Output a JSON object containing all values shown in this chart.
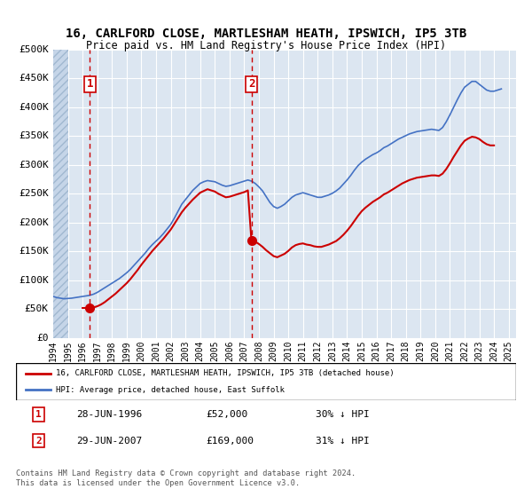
{
  "title": "16, CARLFORD CLOSE, MARTLESHAM HEATH, IPSWICH, IP5 3TB",
  "subtitle": "Price paid vs. HM Land Registry's House Price Index (HPI)",
  "xlabel": "",
  "ylabel": "",
  "ylim": [
    0,
    500000
  ],
  "yticks": [
    0,
    50000,
    100000,
    150000,
    200000,
    250000,
    300000,
    350000,
    400000,
    450000,
    500000
  ],
  "ytick_labels": [
    "£0",
    "£50K",
    "£100K",
    "£150K",
    "£200K",
    "£250K",
    "£300K",
    "£350K",
    "£400K",
    "£450K",
    "£500K"
  ],
  "xlim_start": 1994.0,
  "xlim_end": 2025.5,
  "hatch_end": 1995.0,
  "bg_color": "#dce6f1",
  "plot_bg": "#dce6f1",
  "hatch_color": "#b8cce4",
  "grid_color": "#ffffff",
  "purchase1_x": 1996.49,
  "purchase1_y": 52000,
  "purchase2_x": 2007.49,
  "purchase2_y": 169000,
  "legend_line1": "16, CARLFORD CLOSE, MARTLESHAM HEATH, IPSWICH, IP5 3TB (detached house)",
  "legend_line2": "HPI: Average price, detached house, East Suffolk",
  "table_row1": [
    "1",
    "28-JUN-1996",
    "£52,000",
    "30% ↓ HPI"
  ],
  "table_row2": [
    "2",
    "29-JUN-2007",
    "£169,000",
    "31% ↓ HPI"
  ],
  "footnote": "Contains HM Land Registry data © Crown copyright and database right 2024.\nThis data is licensed under the Open Government Licence v3.0.",
  "red_line_color": "#cc0000",
  "blue_line_color": "#4472c4",
  "marker_color": "#cc0000",
  "vline_color": "#cc0000",
  "hpi_data_x": [
    1994.0,
    1994.25,
    1994.5,
    1994.75,
    1995.0,
    1995.25,
    1995.5,
    1995.75,
    1996.0,
    1996.25,
    1996.5,
    1996.75,
    1997.0,
    1997.25,
    1997.5,
    1997.75,
    1998.0,
    1998.25,
    1998.5,
    1998.75,
    1999.0,
    1999.25,
    1999.5,
    1999.75,
    2000.0,
    2000.25,
    2000.5,
    2000.75,
    2001.0,
    2001.25,
    2001.5,
    2001.75,
    2002.0,
    2002.25,
    2002.5,
    2002.75,
    2003.0,
    2003.25,
    2003.5,
    2003.75,
    2004.0,
    2004.25,
    2004.5,
    2004.75,
    2005.0,
    2005.25,
    2005.5,
    2005.75,
    2006.0,
    2006.25,
    2006.5,
    2006.75,
    2007.0,
    2007.25,
    2007.5,
    2007.75,
    2008.0,
    2008.25,
    2008.5,
    2008.75,
    2009.0,
    2009.25,
    2009.5,
    2009.75,
    2010.0,
    2010.25,
    2010.5,
    2010.75,
    2011.0,
    2011.25,
    2011.5,
    2011.75,
    2012.0,
    2012.25,
    2012.5,
    2012.75,
    2013.0,
    2013.25,
    2013.5,
    2013.75,
    2014.0,
    2014.25,
    2014.5,
    2014.75,
    2015.0,
    2015.25,
    2015.5,
    2015.75,
    2016.0,
    2016.25,
    2016.5,
    2016.75,
    2017.0,
    2017.25,
    2017.5,
    2017.75,
    2018.0,
    2018.25,
    2018.5,
    2018.75,
    2019.0,
    2019.25,
    2019.5,
    2019.75,
    2020.0,
    2020.25,
    2020.5,
    2020.75,
    2021.0,
    2021.25,
    2021.5,
    2021.75,
    2022.0,
    2022.25,
    2022.5,
    2022.75,
    2023.0,
    2023.25,
    2023.5,
    2023.75,
    2024.0,
    2024.25,
    2024.5
  ],
  "hpi_data_y": [
    72000,
    70000,
    69000,
    68000,
    68500,
    69000,
    70000,
    71000,
    72000,
    73000,
    74000,
    76000,
    79000,
    83000,
    87000,
    91000,
    95000,
    99000,
    103000,
    108000,
    113000,
    119000,
    126000,
    133000,
    140000,
    147000,
    155000,
    162000,
    168000,
    174000,
    181000,
    189000,
    197000,
    208000,
    220000,
    232000,
    240000,
    248000,
    256000,
    262000,
    268000,
    271000,
    273000,
    272000,
    271000,
    268000,
    265000,
    263000,
    264000,
    266000,
    268000,
    270000,
    272000,
    274000,
    272000,
    268000,
    262000,
    255000,
    245000,
    235000,
    228000,
    225000,
    228000,
    232000,
    238000,
    244000,
    248000,
    250000,
    252000,
    250000,
    248000,
    246000,
    244000,
    244000,
    246000,
    248000,
    251000,
    255000,
    260000,
    267000,
    274000,
    282000,
    291000,
    299000,
    305000,
    310000,
    314000,
    318000,
    321000,
    325000,
    330000,
    333000,
    337000,
    341000,
    345000,
    348000,
    351000,
    354000,
    356000,
    358000,
    359000,
    360000,
    361000,
    362000,
    361000,
    360000,
    365000,
    375000,
    387000,
    400000,
    413000,
    425000,
    435000,
    440000,
    445000,
    445000,
    440000,
    435000,
    430000,
    428000,
    428000,
    430000,
    432000
  ],
  "red_data_x": [
    1996.0,
    1996.25,
    1996.49,
    1996.75,
    1997.0,
    1997.25,
    1997.5,
    1997.75,
    1998.0,
    1998.25,
    1998.5,
    1998.75,
    1999.0,
    1999.25,
    1999.5,
    1999.75,
    2000.0,
    2000.25,
    2000.5,
    2000.75,
    2001.0,
    2001.25,
    2001.5,
    2001.75,
    2002.0,
    2002.25,
    2002.5,
    2002.75,
    2003.0,
    2003.25,
    2003.5,
    2003.75,
    2004.0,
    2004.25,
    2004.5,
    2004.75,
    2005.0,
    2005.25,
    2005.5,
    2005.75,
    2006.0,
    2006.25,
    2006.5,
    2006.75,
    2007.0,
    2007.25,
    2007.49,
    2007.75,
    2008.0,
    2008.25,
    2008.5,
    2008.75,
    2009.0,
    2009.25,
    2009.5,
    2009.75,
    2010.0,
    2010.25,
    2010.5,
    2010.75,
    2011.0,
    2011.25,
    2011.5,
    2011.75,
    2012.0,
    2012.25,
    2012.5,
    2012.75,
    2013.0,
    2013.25,
    2013.5,
    2013.75,
    2014.0,
    2014.25,
    2014.5,
    2014.75,
    2015.0,
    2015.25,
    2015.5,
    2015.75,
    2016.0,
    2016.25,
    2016.5,
    2016.75,
    2017.0,
    2017.25,
    2017.5,
    2017.75,
    2018.0,
    2018.25,
    2018.5,
    2018.75,
    2019.0,
    2019.25,
    2019.5,
    2019.75,
    2020.0,
    2020.25,
    2020.5,
    2020.75,
    2021.0,
    2021.25,
    2021.5,
    2021.75,
    2022.0,
    2022.25,
    2022.5,
    2022.75,
    2023.0,
    2023.25,
    2023.5,
    2023.75,
    2024.0
  ],
  "red_data_y": [
    52000,
    52000,
    52000,
    53000,
    55000,
    58000,
    62000,
    67000,
    72000,
    77000,
    83000,
    89000,
    95000,
    102000,
    110000,
    118000,
    127000,
    135000,
    143000,
    151000,
    158000,
    165000,
    172000,
    180000,
    188000,
    198000,
    208000,
    218000,
    226000,
    233000,
    240000,
    246000,
    252000,
    255000,
    258000,
    256000,
    254000,
    250000,
    247000,
    244000,
    245000,
    247000,
    249000,
    251000,
    253000,
    256000,
    169000,
    167000,
    163000,
    158000,
    152000,
    147000,
    142000,
    140000,
    143000,
    146000,
    151000,
    157000,
    161000,
    163000,
    164000,
    162000,
    161000,
    159000,
    158000,
    158000,
    160000,
    162000,
    165000,
    168000,
    173000,
    179000,
    186000,
    194000,
    203000,
    212000,
    220000,
    226000,
    231000,
    236000,
    240000,
    244000,
    249000,
    252000,
    256000,
    260000,
    264000,
    268000,
    271000,
    274000,
    276000,
    278000,
    279000,
    280000,
    281000,
    282000,
    282000,
    281000,
    285000,
    293000,
    303000,
    314000,
    324000,
    334000,
    342000,
    346000,
    349000,
    348000,
    345000,
    340000,
    336000,
    334000,
    334000
  ]
}
